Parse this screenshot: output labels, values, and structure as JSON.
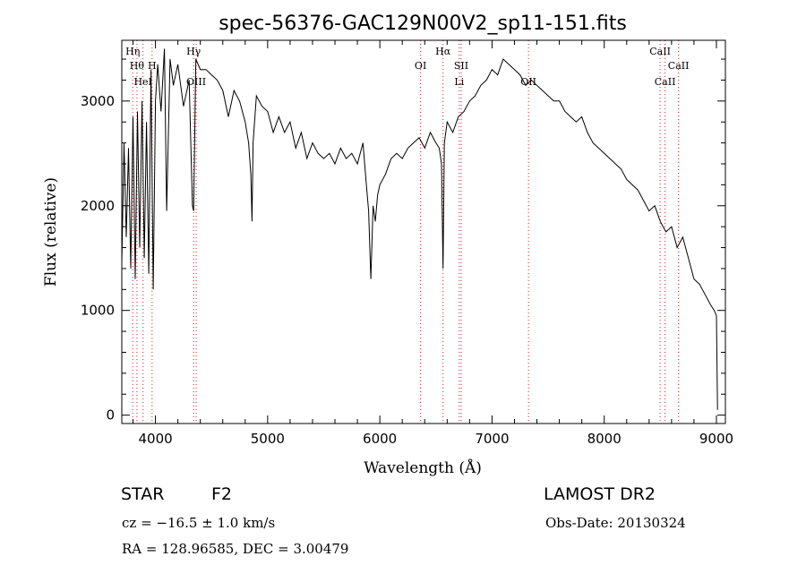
{
  "chart_data": {
    "type": "line",
    "title": "spec-56376-GAC129N00V2_sp11-151.fits",
    "xlabel": "Wavelength (Å)",
    "ylabel": "Flux (relative)",
    "xlim": [
      3700,
      9080
    ],
    "ylim": [
      -80,
      3580
    ],
    "x_ticks": [
      4000,
      5000,
      6000,
      7000,
      8000,
      9000
    ],
    "y_ticks": [
      0,
      1000,
      2000,
      3000
    ],
    "grid": false,
    "series": [
      {
        "x": [
          3700,
          3720,
          3740,
          3760,
          3780,
          3800,
          3820,
          3840,
          3860,
          3880,
          3900,
          3920,
          3940,
          3960,
          3980,
          4000,
          4020,
          4050,
          4080,
          4100,
          4130,
          4160,
          4200,
          4250,
          4300,
          4330,
          4340,
          4360,
          4400,
          4450,
          4500,
          4550,
          4600,
          4650,
          4700,
          4750,
          4800,
          4830,
          4850,
          4861,
          4870,
          4900,
          4950,
          5000,
          5050,
          5100,
          5150,
          5200,
          5250,
          5300,
          5350,
          5400,
          5450,
          5500,
          5550,
          5600,
          5650,
          5700,
          5750,
          5800,
          5850,
          5880,
          5900,
          5920,
          5940,
          5960,
          5980,
          6000,
          6050,
          6100,
          6150,
          6200,
          6250,
          6300,
          6350,
          6400,
          6450,
          6500,
          6530,
          6550,
          6563,
          6575,
          6600,
          6650,
          6700,
          6750,
          6800,
          6850,
          6900,
          6950,
          7000,
          7050,
          7100,
          7150,
          7200,
          7250,
          7300,
          7350,
          7400,
          7450,
          7500,
          7550,
          7600,
          7650,
          7700,
          7750,
          7800,
          7850,
          7900,
          7950,
          8000,
          8050,
          8100,
          8150,
          8200,
          8250,
          8300,
          8350,
          8400,
          8450,
          8500,
          8550,
          8600,
          8650,
          8700,
          8750,
          8800,
          8850,
          8900,
          8950,
          8980,
          9000,
          9010
        ],
        "y": [
          1450,
          2600,
          1700,
          2550,
          1400,
          2850,
          1300,
          2900,
          1600,
          3000,
          1500,
          2800,
          1350,
          3300,
          1200,
          3000,
          3350,
          2900,
          3500,
          1950,
          3400,
          3150,
          3350,
          2950,
          3200,
          2000,
          1950,
          3400,
          3300,
          3300,
          3250,
          3200,
          3100,
          2850,
          3100,
          3000,
          2800,
          2600,
          2300,
          1850,
          2600,
          3050,
          2950,
          2900,
          2700,
          2850,
          2700,
          2800,
          2550,
          2700,
          2450,
          2600,
          2500,
          2450,
          2500,
          2400,
          2550,
          2450,
          2500,
          2400,
          2600,
          2200,
          1950,
          1300,
          2000,
          1850,
          2100,
          2200,
          2300,
          2450,
          2500,
          2450,
          2550,
          2600,
          2650,
          2550,
          2700,
          2600,
          2550,
          2400,
          1400,
          2600,
          2800,
          2700,
          2850,
          2900,
          3000,
          3050,
          3150,
          3200,
          3300,
          3250,
          3400,
          3350,
          3300,
          3250,
          3150,
          3200,
          3150,
          3100,
          3050,
          3000,
          3000,
          2900,
          2850,
          2800,
          2850,
          2700,
          2600,
          2550,
          2500,
          2450,
          2400,
          2350,
          2250,
          2200,
          2150,
          2050,
          1950,
          2000,
          1850,
          1750,
          1800,
          1600,
          1700,
          1500,
          1300,
          1250,
          1150,
          1050,
          1000,
          950,
          50
        ]
      }
    ],
    "lines": [
      {
        "wavelength": 3798,
        "label": "Hη",
        "row": 0
      },
      {
        "wavelength": 3835,
        "label": "Hθ",
        "row": 1
      },
      {
        "wavelength": 3889,
        "label": "HeI",
        "row": 2
      },
      {
        "wavelength": 3970,
        "label": "H",
        "row": 1
      },
      {
        "wavelength": 4340,
        "label": "Hγ",
        "row": 0
      },
      {
        "wavelength": 4363,
        "label": "OIII",
        "row": 2
      },
      {
        "wavelength": 6363,
        "label": "OI",
        "row": 1
      },
      {
        "wavelength": 6563,
        "label": "Hα",
        "row": 0
      },
      {
        "wavelength": 6708,
        "label": "Li",
        "row": 2
      },
      {
        "wavelength": 6725,
        "label": "SII",
        "row": 1
      },
      {
        "wavelength": 7325,
        "label": "OII",
        "row": 2
      },
      {
        "wavelength": 8498,
        "label": "CaII",
        "row": 0
      },
      {
        "wavelength": 8542,
        "label": "CaII",
        "row": 2
      },
      {
        "wavelength": 8662,
        "label": "CaII",
        "row": 1
      }
    ]
  },
  "info": {
    "object_type": "STAR",
    "subclass": "F2",
    "survey": "LAMOST DR2",
    "cz": "cz = −16.5 ± 1.0 km/s",
    "obs_date": "Obs-Date: 20130324",
    "coords": "RA = 128.96585, DEC =   3.00479"
  }
}
